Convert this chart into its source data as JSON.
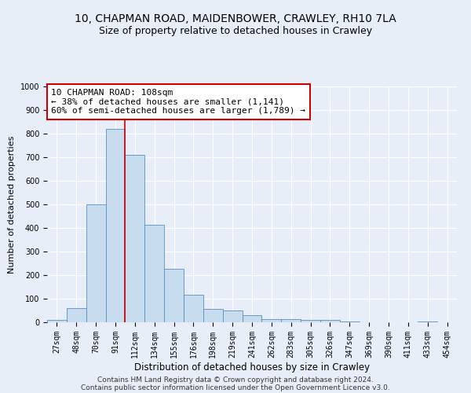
{
  "title1": "10, CHAPMAN ROAD, MAIDENBOWER, CRAWLEY, RH10 7LA",
  "title2": "Size of property relative to detached houses in Crawley",
  "xlabel": "Distribution of detached houses by size in Crawley",
  "ylabel": "Number of detached properties",
  "bin_labels": [
    "27sqm",
    "48sqm",
    "70sqm",
    "91sqm",
    "112sqm",
    "134sqm",
    "155sqm",
    "176sqm",
    "198sqm",
    "219sqm",
    "241sqm",
    "262sqm",
    "283sqm",
    "305sqm",
    "326sqm",
    "347sqm",
    "369sqm",
    "390sqm",
    "411sqm",
    "433sqm",
    "454sqm"
  ],
  "bar_heights": [
    10,
    60,
    500,
    820,
    710,
    415,
    228,
    118,
    57,
    50,
    30,
    15,
    12,
    10,
    10,
    5,
    0,
    0,
    0,
    5,
    0
  ],
  "bar_color": "#c8dcf0",
  "bar_edge_color": "#5a8fc0",
  "vline_color": "#cc0000",
  "annotation_text": "10 CHAPMAN ROAD: 108sqm\n← 38% of detached houses are smaller (1,141)\n60% of semi-detached houses are larger (1,789) →",
  "annotation_box_color": "#ffffff",
  "annotation_box_edge": "#cc0000",
  "ylim": [
    0,
    1000
  ],
  "yticks": [
    0,
    100,
    200,
    300,
    400,
    500,
    600,
    700,
    800,
    900,
    1000
  ],
  "footer1": "Contains HM Land Registry data © Crown copyright and database right 2024.",
  "footer2": "Contains public sector information licensed under the Open Government Licence v3.0.",
  "background_color": "#e8eef8",
  "plot_bg_color": "#e8eef8",
  "grid_color": "#ffffff",
  "title1_fontsize": 10,
  "title2_fontsize": 9,
  "xlabel_fontsize": 8.5,
  "ylabel_fontsize": 8,
  "tick_fontsize": 7,
  "annotation_fontsize": 8,
  "footer_fontsize": 6.5
}
